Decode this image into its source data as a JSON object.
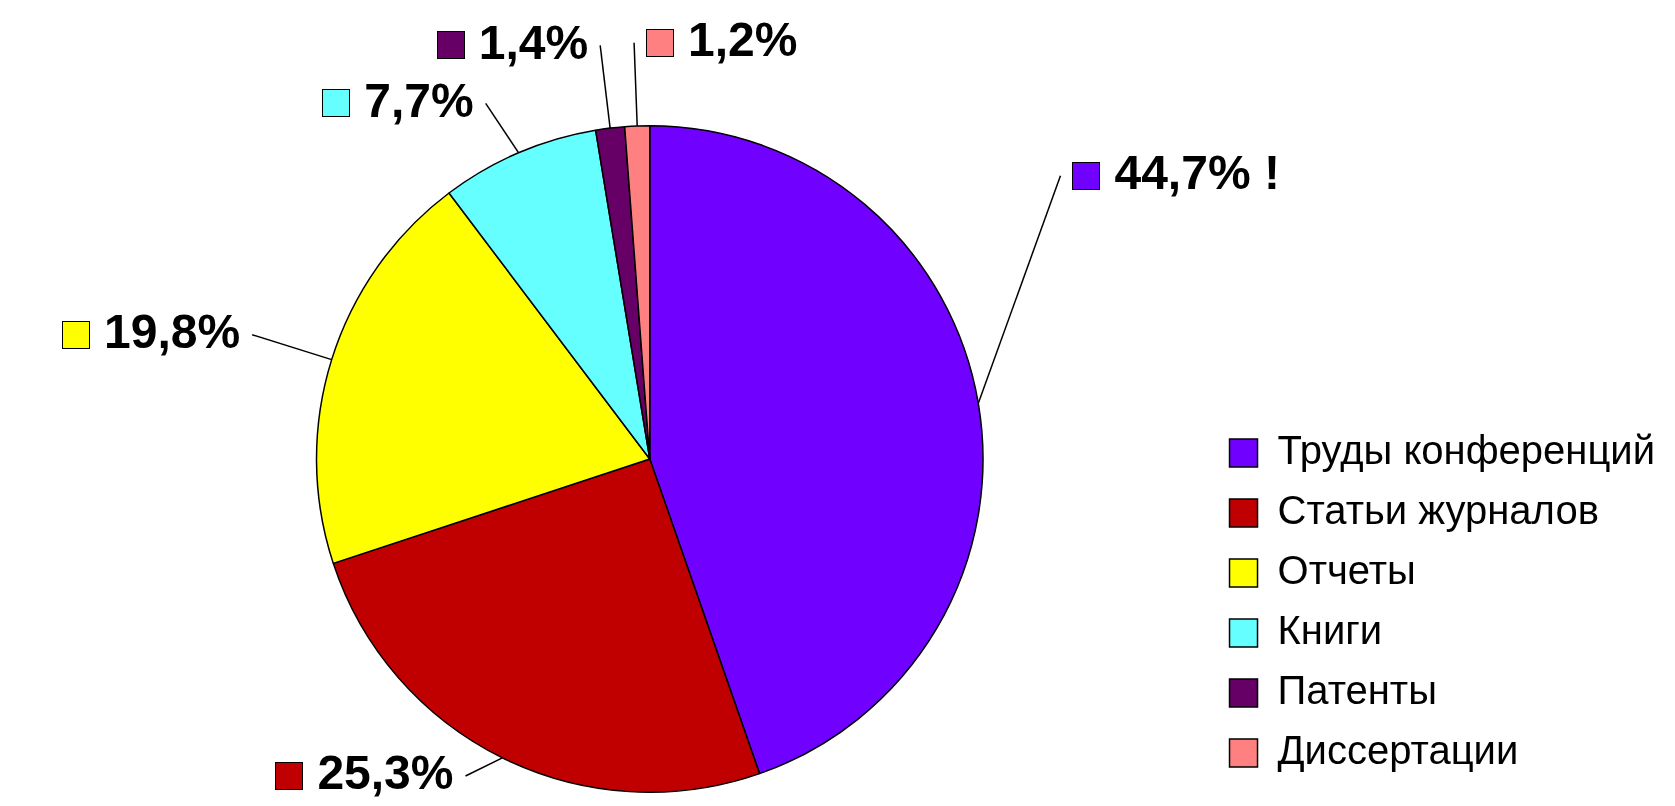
{
  "chart_data": {
    "type": "pie",
    "categories": [
      "Труды конференций",
      "Статьи журналов",
      "Отчеты",
      "Книги",
      "Патенты",
      "Диссертации"
    ],
    "values": [
      44.7,
      25.3,
      19.8,
      7.7,
      1.4,
      1.2
    ],
    "value_labels": [
      "44,7% !",
      "25,3%",
      "19,8%",
      "7,7%",
      "1,4%",
      "1,2%"
    ],
    "colors": [
      "#7000ff",
      "#c00000",
      "#ffff00",
      "#66ffff",
      "#660066",
      "#ff8080"
    ],
    "legend": "bottom right"
  }
}
